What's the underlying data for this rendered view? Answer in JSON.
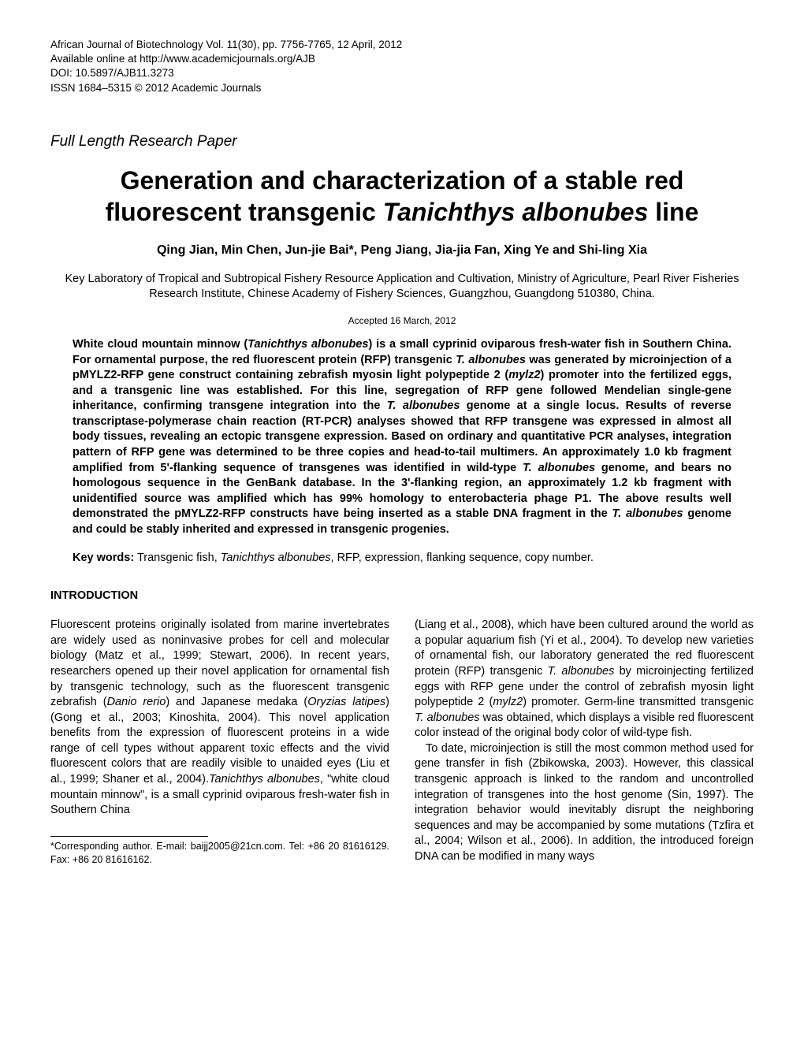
{
  "header": {
    "journal_line": "African Journal of Biotechnology Vol. 11(30), pp. 7756-7765, 12 April, 2012",
    "online_line": "Available online at http://www.academicjournals.org/AJB",
    "doi_line": "DOI: 10.5897/AJB11.3273",
    "issn_line": "ISSN 1684–5315 © 2012 Academic Journals"
  },
  "paper_type": "Full Length Research Paper",
  "title": {
    "pre": "Generation and characterization of a stable red fluorescent transgenic ",
    "italic": "Tanichthys albonubes",
    "post": " line"
  },
  "authors": "Qing Jian, Min Chen, Jun-jie Bai*, Peng Jiang, Jia-jia Fan, Xing Ye and Shi-ling Xia",
  "affiliation": "Key Laboratory of Tropical and Subtropical Fishery Resource Application and Cultivation, Ministry of Agriculture, Pearl River Fisheries Research Institute, Chinese Academy of Fishery Sciences, Guangzhou, Guangdong 510380, China.",
  "accepted": "Accepted 16 March, 2012",
  "abstract": {
    "s1": "White cloud mountain minnow (",
    "s2": "Tanichthys albonubes",
    "s3": ") is a small cyprinid oviparous fresh-water fish in Southern China. For ornamental purpose, the red fluorescent protein (RFP) transgenic ",
    "s4": "T. albonubes",
    "s5": " was generated by microinjection of a pMYLZ2-RFP gene construct containing zebrafish myosin light polypeptide 2 (",
    "s6": "mylz2",
    "s7": ") promoter into the fertilized eggs, and a transgenic line was established. For this line, segregation of RFP gene followed Mendelian single-gene inheritance, confirming transgene integration into the ",
    "s8": "T. albonubes",
    "s9": " genome at a single locus. Results of reverse transcriptase-polymerase chain reaction (RT-PCR) analyses showed that RFP transgene was expressed in almost all body tissues, revealing an ectopic transgene expression. Based on ordinary and quantitative PCR analyses, integration pattern of RFP gene was determined to be three copies and head-to-tail multimers. An approximately 1.0 kb fragment amplified from 5'-flanking sequence of transgenes was identified in wild-type ",
    "s10": "T. albonubes",
    "s11": " genome, and bears no homologous sequence in the GenBank database. In the 3'-flanking region, an approximately 1.2 kb fragment with unidentified source was amplified which has 99% homology to enterobacteria phage P1. The above results well demonstrated the pMYLZ2-RFP constructs have being inserted as a stable DNA fragment in the ",
    "s12": "T. albonubes",
    "s13": " genome and could be stably inherited and expressed in transgenic progenies."
  },
  "keywords": {
    "label": "Key words:",
    "pre": " Transgenic fish, ",
    "italic": "Tanichthys albonubes",
    "post": ", RFP, expression, flanking sequence, copy number."
  },
  "section_heading": "INTRODUCTION",
  "body_left": {
    "p1a": "Fluorescent proteins originally isolated from marine invertebrates are widely used as noninvasive probes for cell and molecular biology (Matz et al., 1999; Stewart, 2006). In recent years, researchers opened up their novel application for ornamental fish by transgenic technology, such as the fluorescent transgenic zebrafish (",
    "p1b": "Danio rerio",
    "p1c": ") and Japanese medaka (",
    "p1d": "Oryzias latipes",
    "p1e": ") (Gong et al., 2003; Kinoshita, 2004). This novel application benefits from the expression of fluorescent proteins in a wide range of cell types without apparent toxic effects and the vivid fluorescent colors that are readily visible to unaided eyes (Liu et al., 1999; Shaner et al., 2004).",
    "p1f": "Tanichthys albonubes",
    "p1g": ", \"white cloud mountain minnow\", is a small cyprinid oviparous fresh-water  fish in Southern China"
  },
  "footnote": "*Corresponding author. E-mail: baijj2005@21cn.com. Tel: +86 20 81616129. Fax: +86 20 81616162.",
  "body_right": {
    "p1a": "(Liang et al., 2008), which have been cultured around the world as a popular aquarium fish (Yi et al., 2004). To develop new varieties of ornamental fish, our laboratory generated the red fluorescent protein (RFP) transgenic ",
    "p1b": "T. albonubes",
    "p1c": " by microinjecting fertilized eggs with RFP gene under the control of zebrafish myosin light polypeptide 2 (",
    "p1d": "mylz2",
    "p1e": ") promoter. Germ-line transmitted transgenic ",
    "p1f": "T. albonubes",
    "p1g": " was obtained, which displays a visible red fluorescent color instead of the original body color of wild-type fish.",
    "p2": "To date, microinjection is still the most common method used for gene transfer in fish (Zbikowska, 2003). However, this classical transgenic approach is linked to the random and uncontrolled integration of transgenes into the host genome (Sin, 1997). The integration behavior would inevitably disrupt the neighboring sequences and may be accompanied by some mutations (Tzfira et al., 2004; Wilson et al., 2006). In addition, the introduced foreign DNA  can  be  modified  in  many ways"
  }
}
